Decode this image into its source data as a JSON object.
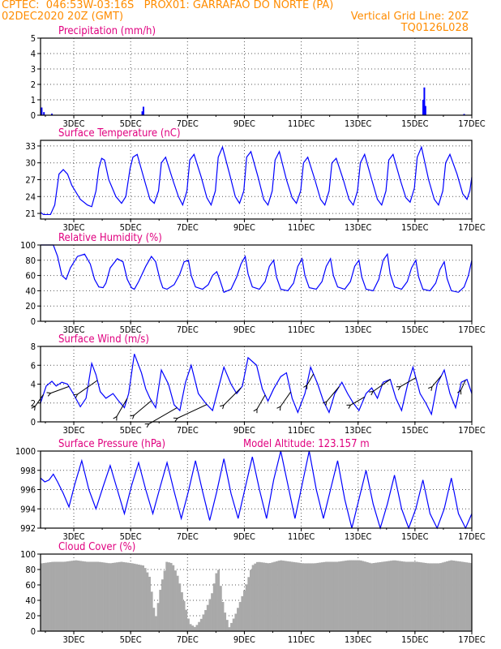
{
  "header": {
    "line1_left": "CPTEC:  046:53W-03:16S   PROX01: GARRAFAO DO NORTE (PA)",
    "line2_left": "02DEC2020 20Z (GMT)",
    "line2_right": "Vertical Grid Line: 20Z",
    "line3_right": "TQ0126L028"
  },
  "x_ticks": [
    "3DEC",
    "5DEC",
    "7DEC",
    "9DEC",
    "11DEC",
    "13DEC",
    "15DEC",
    "17DEC"
  ],
  "x_tick_times": [
    1.17,
    3.17,
    5.17,
    7.17,
    9.17,
    11.17,
    13.17,
    15.17
  ],
  "x_range": [
    0,
    15.17
  ],
  "chart_data": [
    {
      "type": "bar",
      "title": "Precipitation (mm/h)",
      "ylim": [
        0,
        5
      ],
      "yticks": [
        0,
        1,
        2,
        3,
        4,
        5
      ],
      "color": "#0000ff",
      "x": [
        0.04,
        0.12,
        0.4,
        3.58,
        3.62,
        13.46,
        13.5,
        13.54,
        14.9
      ],
      "values": [
        0.5,
        0.2,
        0.1,
        0.25,
        0.55,
        1.0,
        1.8,
        0.6,
        0.08
      ]
    },
    {
      "type": "line",
      "title": "Surface Temperature (nC)",
      "ylim": [
        20,
        34
      ],
      "yticks": [
        21,
        24,
        27,
        30,
        33
      ],
      "color": "#0000ff",
      "x": [
        0,
        0.1,
        0.35,
        0.5,
        0.65,
        0.8,
        0.95,
        1.1,
        1.4,
        1.65,
        1.8,
        1.95,
        2.05,
        2.15,
        2.25,
        2.4,
        2.65,
        2.85,
        3.0,
        3.15,
        3.25,
        3.4,
        3.65,
        3.85,
        4.0,
        4.15,
        4.25,
        4.4,
        4.65,
        4.85,
        5.0,
        5.15,
        5.25,
        5.4,
        5.65,
        5.85,
        6.0,
        6.15,
        6.25,
        6.4,
        6.65,
        6.85,
        7.0,
        7.15,
        7.25,
        7.4,
        7.65,
        7.85,
        8.0,
        8.15,
        8.25,
        8.4,
        8.65,
        8.85,
        9.0,
        9.15,
        9.25,
        9.4,
        9.65,
        9.85,
        10.0,
        10.15,
        10.25,
        10.4,
        10.65,
        10.85,
        11.0,
        11.15,
        11.25,
        11.4,
        11.65,
        11.85,
        12.0,
        12.15,
        12.25,
        12.4,
        12.65,
        12.85,
        13.0,
        13.15,
        13.25,
        13.4,
        13.65,
        13.85,
        14.0,
        14.15,
        14.25,
        14.4,
        14.65,
        14.85,
        15.0,
        15.1,
        15.17
      ],
      "values": [
        21.2,
        20.8,
        20.8,
        22.5,
        28.0,
        28.8,
        28.0,
        26.0,
        23.5,
        22.5,
        22.2,
        25.0,
        29.0,
        30.8,
        30.5,
        27.0,
        24.0,
        22.8,
        24.0,
        29.0,
        31.0,
        31.5,
        27.0,
        23.5,
        22.8,
        25.0,
        30.0,
        31.0,
        27.0,
        24.0,
        22.5,
        25.0,
        30.5,
        31.5,
        27.5,
        23.8,
        22.5,
        25.0,
        31.0,
        32.8,
        28.0,
        24.0,
        22.8,
        25.0,
        31.0,
        32.0,
        27.5,
        23.5,
        22.5,
        25.0,
        30.5,
        32.0,
        27.0,
        23.8,
        22.8,
        25.0,
        30.0,
        31.0,
        27.0,
        23.5,
        22.5,
        25.0,
        30.0,
        30.8,
        27.0,
        23.5,
        22.5,
        25.0,
        30.0,
        31.5,
        27.0,
        23.5,
        22.5,
        25.0,
        30.5,
        31.5,
        27.0,
        23.8,
        23.0,
        25.5,
        31.0,
        32.8,
        27.0,
        23.5,
        22.5,
        25.0,
        30.0,
        31.5,
        28.0,
        24.5,
        23.5,
        25.0,
        27.5
      ]
    },
    {
      "type": "line",
      "title": "Relative Humidity (%)",
      "ylim": [
        0,
        100
      ],
      "yticks": [
        0,
        20,
        40,
        60,
        80,
        100
      ],
      "color": "#0000ff",
      "x": [
        0,
        0.45,
        0.6,
        0.75,
        0.9,
        1.05,
        1.3,
        1.55,
        1.75,
        1.9,
        2.05,
        2.2,
        2.3,
        2.45,
        2.7,
        2.9,
        3.05,
        3.2,
        3.3,
        3.45,
        3.7,
        3.9,
        4.05,
        4.2,
        4.3,
        4.45,
        4.7,
        4.9,
        5.05,
        5.2,
        5.3,
        5.45,
        5.7,
        5.9,
        6.05,
        6.2,
        6.3,
        6.45,
        6.7,
        6.9,
        7.05,
        7.2,
        7.3,
        7.45,
        7.7,
        7.9,
        8.05,
        8.2,
        8.3,
        8.45,
        8.7,
        8.9,
        9.05,
        9.2,
        9.3,
        9.45,
        9.7,
        9.9,
        10.05,
        10.2,
        10.3,
        10.45,
        10.7,
        10.9,
        11.05,
        11.2,
        11.3,
        11.45,
        11.7,
        11.9,
        12.05,
        12.2,
        12.3,
        12.45,
        12.7,
        12.9,
        13.05,
        13.2,
        13.3,
        13.45,
        13.7,
        13.9,
        14.05,
        14.2,
        14.3,
        14.45,
        14.7,
        14.9,
        15.05,
        15.17
      ],
      "values": [
        100,
        100,
        85,
        60,
        55,
        70,
        85,
        88,
        75,
        55,
        45,
        44,
        50,
        70,
        82,
        78,
        55,
        44,
        42,
        52,
        72,
        85,
        78,
        55,
        44,
        42,
        48,
        62,
        78,
        80,
        60,
        45,
        42,
        48,
        60,
        65,
        55,
        38,
        42,
        58,
        75,
        85,
        62,
        45,
        42,
        52,
        72,
        80,
        58,
        42,
        40,
        50,
        72,
        82,
        60,
        44,
        42,
        52,
        72,
        82,
        60,
        45,
        42,
        52,
        72,
        80,
        58,
        42,
        40,
        55,
        80,
        88,
        62,
        45,
        42,
        52,
        70,
        80,
        58,
        42,
        40,
        50,
        68,
        78,
        56,
        40,
        38,
        45,
        60,
        80
      ]
    },
    {
      "type": "line",
      "title": "Surface Wind (m/s)",
      "ylim": [
        0,
        8
      ],
      "yticks": [
        0,
        2,
        4,
        6,
        8
      ],
      "color": "#0000ff",
      "x": [
        0,
        0.2,
        0.4,
        0.55,
        0.75,
        0.95,
        1.15,
        1.4,
        1.6,
        1.8,
        1.95,
        2.1,
        2.3,
        2.55,
        2.75,
        2.95,
        3.1,
        3.3,
        3.55,
        3.7,
        3.85,
        4.05,
        4.25,
        4.5,
        4.7,
        4.9,
        5.1,
        5.3,
        5.55,
        5.8,
        6.05,
        6.25,
        6.45,
        6.7,
        6.9,
        7.1,
        7.3,
        7.6,
        7.8,
        8.0,
        8.2,
        8.45,
        8.65,
        8.85,
        9.05,
        9.3,
        9.5,
        9.75,
        9.95,
        10.15,
        10.35,
        10.6,
        10.8,
        11.0,
        11.2,
        11.45,
        11.65,
        11.85,
        12.05,
        12.3,
        12.5,
        12.7,
        12.9,
        13.1,
        13.35,
        13.55,
        13.75,
        13.95,
        14.2,
        14.4,
        14.6,
        14.8,
        15.0,
        15.17
      ],
      "values": [
        2.0,
        3.8,
        4.3,
        3.8,
        4.2,
        4.0,
        3.0,
        1.6,
        2.5,
        6.2,
        5.0,
        3.2,
        2.5,
        3.0,
        2.2,
        1.5,
        3.0,
        7.2,
        5.2,
        3.5,
        2.5,
        1.5,
        5.5,
        4.0,
        1.8,
        1.2,
        4.2,
        6.0,
        3.0,
        2.0,
        1.2,
        3.5,
        5.8,
        4.0,
        3.0,
        3.8,
        6.8,
        6.0,
        3.5,
        2.2,
        3.5,
        4.8,
        5.2,
        2.5,
        1.0,
        3.0,
        5.8,
        4.0,
        2.2,
        1.0,
        3.0,
        4.2,
        3.0,
        2.0,
        1.2,
        3.0,
        3.6,
        2.5,
        4.2,
        4.5,
        2.5,
        1.2,
        3.8,
        5.8,
        3.0,
        2.0,
        0.8,
        4.0,
        5.5,
        3.0,
        1.5,
        4.2,
        4.5,
        3.0
      ],
      "arrows": [
        {
          "x": 0.1,
          "angle": 235,
          "len": 18
        },
        {
          "x": 1.0,
          "angle": 200,
          "len": 24
        },
        {
          "x": 2.0,
          "angle": 215,
          "len": 30
        },
        {
          "x": 3.05,
          "angle": 240,
          "len": 26
        },
        {
          "x": 3.9,
          "angle": 220,
          "len": 28
        },
        {
          "x": 4.8,
          "angle": 210,
          "len": 40
        },
        {
          "x": 5.85,
          "angle": 205,
          "len": 40
        },
        {
          "x": 7.05,
          "angle": 225,
          "len": 30
        },
        {
          "x": 7.9,
          "angle": 240,
          "len": 20
        },
        {
          "x": 8.8,
          "angle": 235,
          "len": 22
        },
        {
          "x": 9.6,
          "angle": 240,
          "len": 16
        },
        {
          "x": 10.5,
          "angle": 230,
          "len": 24
        },
        {
          "x": 11.4,
          "angle": 210,
          "len": 20
        },
        {
          "x": 12.3,
          "angle": 215,
          "len": 26
        },
        {
          "x": 13.2,
          "angle": 210,
          "len": 22
        },
        {
          "x": 14.1,
          "angle": 230,
          "len": 18
        },
        {
          "x": 14.95,
          "angle": 245,
          "len": 14
        }
      ]
    },
    {
      "type": "line",
      "title": "Surface Pressure (hPa)",
      "annotation": "Model Altitude: 123.157 m",
      "ylim": [
        992,
        1000
      ],
      "yticks": [
        992,
        994,
        996,
        998,
        1000
      ],
      "color": "#0000ff",
      "x": [
        0,
        0.15,
        0.3,
        0.45,
        0.6,
        0.8,
        1.0,
        1.2,
        1.45,
        1.7,
        1.95,
        2.2,
        2.45,
        2.7,
        2.95,
        3.2,
        3.45,
        3.7,
        3.95,
        4.2,
        4.45,
        4.7,
        4.95,
        5.2,
        5.45,
        5.7,
        5.95,
        6.2,
        6.45,
        6.7,
        6.95,
        7.2,
        7.45,
        7.7,
        7.95,
        8.2,
        8.45,
        8.7,
        8.95,
        9.2,
        9.45,
        9.7,
        9.95,
        10.2,
        10.45,
        10.7,
        10.95,
        11.2,
        11.45,
        11.7,
        11.95,
        12.2,
        12.45,
        12.7,
        12.95,
        13.2,
        13.45,
        13.7,
        13.95,
        14.2,
        14.45,
        14.7,
        14.95,
        15.17
      ],
      "values": [
        997.2,
        996.8,
        997.0,
        997.6,
        996.8,
        995.6,
        994.2,
        996.5,
        999.0,
        996.0,
        994.0,
        996.3,
        998.5,
        996.0,
        993.5,
        996.4,
        998.8,
        996.0,
        993.5,
        996.2,
        998.8,
        995.8,
        993.0,
        995.8,
        999.0,
        995.8,
        992.8,
        995.8,
        999.2,
        995.6,
        993.0,
        996.2,
        999.4,
        996.0,
        993.0,
        997.0,
        1000.0,
        996.5,
        993.0,
        996.5,
        1000.0,
        996.0,
        993.0,
        996.0,
        999.0,
        995.0,
        992.0,
        995.0,
        998.0,
        994.5,
        991.8,
        994.5,
        997.5,
        994.0,
        991.5,
        994.0,
        997.0,
        993.5,
        991.5,
        994.0,
        997.2,
        993.5,
        992.0,
        993.5
      ]
    },
    {
      "type": "bar",
      "title": "Cloud Cover (%)",
      "ylim": [
        0,
        100
      ],
      "yticks": [
        0,
        20,
        40,
        60,
        80,
        100
      ],
      "color": "#a9a9a9",
      "x": [
        0,
        0.4,
        0.8,
        1.2,
        1.6,
        2.0,
        2.4,
        2.8,
        3.2,
        3.6,
        3.8,
        4.0,
        4.2,
        4.4,
        4.6,
        4.8,
        5.0,
        5.2,
        5.4,
        5.6,
        5.8,
        6.0,
        6.2,
        6.4,
        6.6,
        6.8,
        7.0,
        7.2,
        7.4,
        7.6,
        8.0,
        8.4,
        8.8,
        9.2,
        9.6,
        10.0,
        10.4,
        10.8,
        11.2,
        11.6,
        12.0,
        12.4,
        12.8,
        13.2,
        13.6,
        14.0,
        14.4,
        14.8,
        15.17
      ],
      "values": [
        88,
        90,
        90,
        92,
        90,
        90,
        88,
        90,
        88,
        85,
        70,
        15,
        60,
        90,
        88,
        70,
        40,
        10,
        5,
        15,
        30,
        50,
        85,
        30,
        5,
        20,
        40,
        60,
        85,
        90,
        88,
        92,
        90,
        88,
        88,
        90,
        90,
        92,
        92,
        88,
        90,
        92,
        90,
        90,
        88,
        88,
        92,
        90,
        88
      ]
    }
  ]
}
